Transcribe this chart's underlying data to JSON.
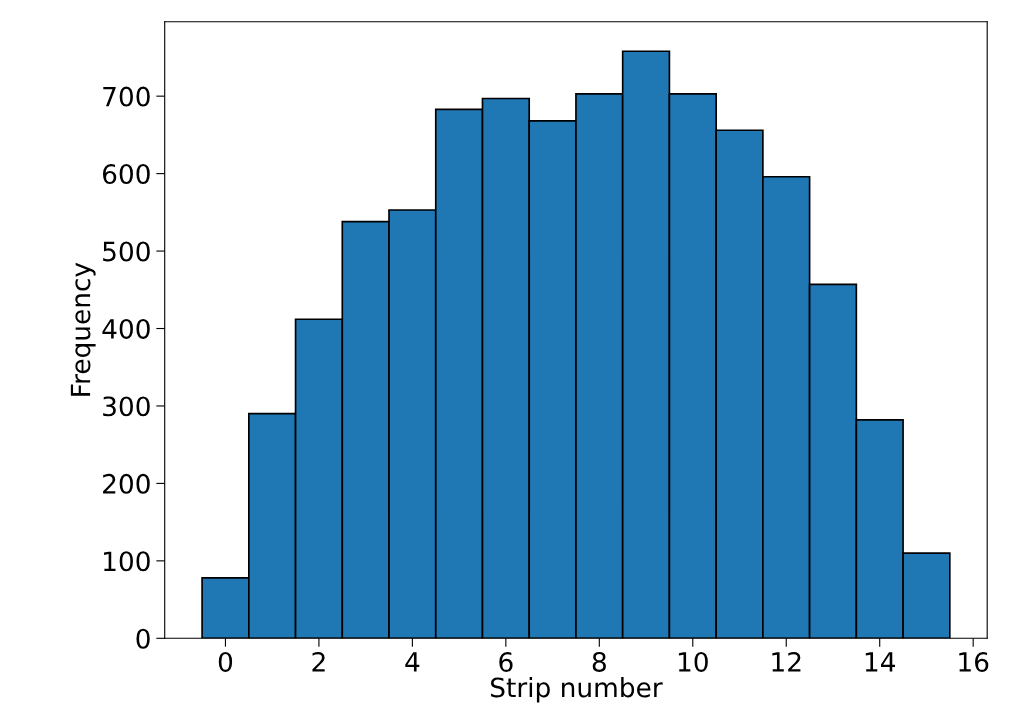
{
  "chart_data": {
    "type": "histogram",
    "xlabel": "Strip number",
    "ylabel": "Frequency",
    "bins": [
      -0.5,
      0.5,
      1.5,
      2.5,
      3.5,
      4.5,
      5.5,
      6.5,
      7.5,
      8.5,
      9.5,
      10.5,
      11.5,
      12.5,
      13.5,
      14.5,
      15.5
    ],
    "values": [
      78,
      290,
      412,
      538,
      553,
      683,
      697,
      668,
      703,
      758,
      703,
      656,
      596,
      457,
      282,
      110
    ],
    "color": "#1f77b4",
    "xlim": [
      -1.3,
      16.3
    ],
    "xticks": [
      0,
      2,
      4,
      6,
      8,
      10,
      12,
      14,
      16
    ],
    "ylim": [
      0,
      796
    ],
    "yticks": [
      0,
      100,
      200,
      300,
      400,
      500,
      600,
      700
    ],
    "grid": false
  }
}
